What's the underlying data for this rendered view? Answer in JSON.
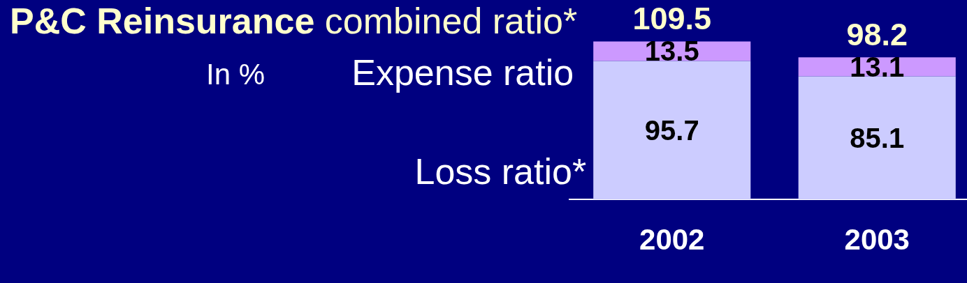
{
  "chart_data": {
    "type": "bar",
    "title": "P&C Reinsurance",
    "subtitle": "combined ratio*",
    "categories": [
      "2002",
      "2003"
    ],
    "series": [
      {
        "name": "Loss ratio*",
        "color": "#ccccff",
        "values": [
          95.7,
          85.1
        ]
      },
      {
        "name": "Expense ratio",
        "color": "#cc99ff",
        "values": [
          13.5,
          13.1
        ]
      }
    ],
    "stacked": true,
    "data_labels": true,
    "annotations": [
      "In %",
      "109.5",
      "98.2"
    ]
  }
}
